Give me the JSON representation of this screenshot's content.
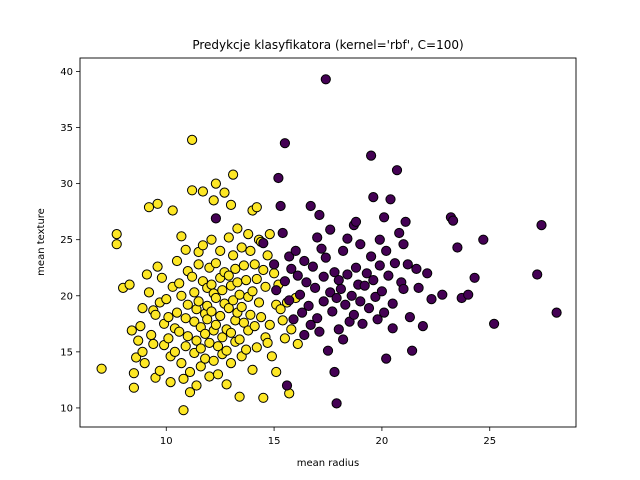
{
  "chart_data": {
    "type": "scatter",
    "title": "Predykcje klasyfikatora (kernel='rbf', C=100)",
    "xlabel": "mean radius",
    "ylabel": "mean texture",
    "xlim": [
      6.0,
      29.0
    ],
    "ylim": [
      8.3,
      41.2
    ],
    "xticks": [
      10,
      15,
      20,
      25
    ],
    "yticks": [
      10,
      15,
      20,
      25,
      30,
      35,
      40
    ],
    "grid": false,
    "legend": "none",
    "series": [
      {
        "color": "#fde725",
        "points": [
          [
            7.0,
            13.5
          ],
          [
            7.7,
            25.5
          ],
          [
            7.7,
            24.6
          ],
          [
            8.0,
            20.7
          ],
          [
            8.3,
            21.0
          ],
          [
            8.4,
            16.9
          ],
          [
            8.5,
            13.1
          ],
          [
            8.5,
            11.8
          ],
          [
            8.6,
            14.5
          ],
          [
            8.7,
            16.0
          ],
          [
            8.8,
            17.3
          ],
          [
            8.9,
            18.9
          ],
          [
            8.9,
            15.0
          ],
          [
            9.0,
            14.0
          ],
          [
            9.1,
            21.9
          ],
          [
            9.2,
            27.9
          ],
          [
            9.2,
            20.3
          ],
          [
            9.3,
            16.5
          ],
          [
            9.4,
            18.7
          ],
          [
            9.4,
            15.7
          ],
          [
            9.5,
            18.3
          ],
          [
            9.5,
            12.7
          ],
          [
            9.6,
            28.2
          ],
          [
            9.6,
            22.6
          ],
          [
            9.7,
            19.4
          ],
          [
            9.7,
            13.3
          ],
          [
            9.8,
            21.6
          ],
          [
            9.9,
            17.5
          ],
          [
            9.9,
            15.6
          ],
          [
            10.0,
            19.7
          ],
          [
            10.1,
            18.1
          ],
          [
            10.1,
            16.2
          ],
          [
            10.2,
            14.6
          ],
          [
            10.2,
            12.3
          ],
          [
            10.3,
            27.6
          ],
          [
            10.3,
            20.8
          ],
          [
            10.4,
            17.1
          ],
          [
            10.4,
            15.0
          ],
          [
            10.5,
            23.1
          ],
          [
            10.5,
            18.5
          ],
          [
            10.6,
            21.1
          ],
          [
            10.6,
            16.8
          ],
          [
            10.7,
            25.3
          ],
          [
            10.7,
            20.0
          ],
          [
            10.7,
            14.0
          ],
          [
            10.8,
            12.6
          ],
          [
            10.8,
            9.8
          ],
          [
            10.9,
            24.1
          ],
          [
            10.9,
            18.0
          ],
          [
            10.9,
            15.5
          ],
          [
            11.0,
            22.2
          ],
          [
            11.0,
            19.2
          ],
          [
            11.0,
            16.4
          ],
          [
            11.1,
            13.2
          ],
          [
            11.1,
            11.4
          ],
          [
            11.2,
            33.9
          ],
          [
            11.2,
            29.4
          ],
          [
            11.2,
            21.7
          ],
          [
            11.3,
            20.3
          ],
          [
            11.3,
            17.7
          ],
          [
            11.3,
            14.9
          ],
          [
            11.4,
            18.8
          ],
          [
            11.4,
            16.0
          ],
          [
            11.4,
            12.0
          ],
          [
            11.5,
            23.9
          ],
          [
            11.5,
            22.8
          ],
          [
            11.5,
            19.5
          ],
          [
            11.6,
            17.2
          ],
          [
            11.6,
            15.3
          ],
          [
            11.6,
            13.7
          ],
          [
            11.7,
            29.3
          ],
          [
            11.7,
            24.5
          ],
          [
            11.7,
            21.3
          ],
          [
            11.8,
            18.4
          ],
          [
            11.8,
            16.6
          ],
          [
            11.8,
            14.4
          ],
          [
            11.9,
            20.7
          ],
          [
            11.9,
            19.1
          ],
          [
            11.9,
            17.9
          ],
          [
            12.0,
            22.5
          ],
          [
            12.0,
            15.8
          ],
          [
            12.0,
            12.8
          ],
          [
            12.1,
            25.0
          ],
          [
            12.1,
            21.0
          ],
          [
            12.1,
            18.6
          ],
          [
            12.2,
            28.5
          ],
          [
            12.2,
            20.2
          ],
          [
            12.2,
            16.9
          ],
          [
            12.2,
            14.2
          ],
          [
            12.3,
            30.0
          ],
          [
            12.3,
            22.9
          ],
          [
            12.3,
            19.8
          ],
          [
            12.3,
            17.4
          ],
          [
            12.4,
            15.5
          ],
          [
            12.4,
            13.0
          ],
          [
            12.5,
            24.0
          ],
          [
            12.5,
            21.6
          ],
          [
            12.5,
            18.2
          ],
          [
            12.6,
            20.5
          ],
          [
            12.6,
            16.3
          ],
          [
            12.6,
            14.8
          ],
          [
            12.7,
            29.2
          ],
          [
            12.7,
            22.1
          ],
          [
            12.7,
            19.3
          ],
          [
            12.8,
            17.0
          ],
          [
            12.8,
            15.1
          ],
          [
            12.8,
            12.1
          ],
          [
            12.9,
            25.2
          ],
          [
            12.9,
            21.8
          ],
          [
            12.9,
            18.9
          ],
          [
            13.0,
            28.1
          ],
          [
            13.0,
            20.9
          ],
          [
            13.0,
            16.7
          ],
          [
            13.0,
            14.0
          ],
          [
            13.1,
            30.8
          ],
          [
            13.1,
            23.6
          ],
          [
            13.1,
            19.6
          ],
          [
            13.2,
            22.4
          ],
          [
            13.2,
            17.8
          ],
          [
            13.2,
            15.9
          ],
          [
            13.3,
            26.0
          ],
          [
            13.3,
            21.2
          ],
          [
            13.3,
            18.5
          ],
          [
            13.4,
            20.1
          ],
          [
            13.4,
            16.1
          ],
          [
            13.4,
            11.0
          ],
          [
            13.5,
            24.3
          ],
          [
            13.5,
            19.0
          ],
          [
            13.5,
            14.6
          ],
          [
            13.6,
            22.7
          ],
          [
            13.6,
            17.6
          ],
          [
            13.7,
            21.4
          ],
          [
            13.7,
            15.2
          ],
          [
            13.8,
            25.5
          ],
          [
            13.8,
            19.9
          ],
          [
            13.8,
            16.9
          ],
          [
            13.9,
            24.0
          ],
          [
            13.9,
            18.3
          ],
          [
            14.0,
            27.6
          ],
          [
            14.0,
            20.4
          ],
          [
            14.0,
            13.4
          ],
          [
            14.1,
            22.8
          ],
          [
            14.1,
            17.3
          ],
          [
            14.2,
            27.9
          ],
          [
            14.2,
            21.5
          ],
          [
            14.2,
            15.4
          ],
          [
            14.3,
            25.0
          ],
          [
            14.3,
            19.4
          ],
          [
            14.4,
            24.8
          ],
          [
            14.4,
            18.1
          ],
          [
            14.5,
            10.9
          ],
          [
            14.5,
            22.3
          ],
          [
            14.6,
            20.8
          ],
          [
            14.6,
            16.3
          ],
          [
            14.7,
            23.6
          ],
          [
            14.7,
            15.8
          ],
          [
            14.8,
            25.5
          ],
          [
            14.8,
            17.4
          ],
          [
            14.9,
            14.6
          ],
          [
            15.0,
            22.0
          ],
          [
            15.1,
            19.2
          ],
          [
            15.1,
            13.2
          ],
          [
            15.2,
            21.0
          ],
          [
            15.3,
            18.8
          ],
          [
            15.4,
            17.8
          ],
          [
            15.5,
            16.2
          ],
          [
            15.6,
            19.4
          ],
          [
            15.7,
            11.3
          ],
          [
            15.8,
            17.0
          ],
          [
            16.0,
            19.8
          ],
          [
            16.1,
            15.7
          ]
        ]
      },
      {
        "color": "#440154",
        "points": [
          [
            12.3,
            26.9
          ],
          [
            14.5,
            24.7
          ],
          [
            15.0,
            22.8
          ],
          [
            15.1,
            20.5
          ],
          [
            15.2,
            30.5
          ],
          [
            15.3,
            28.0
          ],
          [
            15.4,
            25.6
          ],
          [
            15.5,
            33.6
          ],
          [
            15.5,
            21.3
          ],
          [
            15.6,
            12.0
          ],
          [
            15.7,
            23.5
          ],
          [
            15.7,
            19.6
          ],
          [
            15.8,
            22.4
          ],
          [
            15.9,
            17.9
          ],
          [
            16.0,
            24.0
          ],
          [
            16.1,
            21.8
          ],
          [
            16.2,
            20.1
          ],
          [
            16.3,
            18.5
          ],
          [
            16.4,
            23.1
          ],
          [
            16.4,
            16.5
          ],
          [
            16.5,
            21.2
          ],
          [
            16.6,
            19.1
          ],
          [
            16.7,
            28.0
          ],
          [
            16.7,
            17.4
          ],
          [
            16.8,
            22.6
          ],
          [
            16.9,
            20.7
          ],
          [
            17.0,
            25.2
          ],
          [
            17.0,
            18.0
          ],
          [
            17.1,
            27.2
          ],
          [
            17.1,
            16.8
          ],
          [
            17.2,
            24.2
          ],
          [
            17.3,
            21.7
          ],
          [
            17.3,
            19.5
          ],
          [
            17.4,
            39.3
          ],
          [
            17.4,
            23.4
          ],
          [
            17.5,
            15.1
          ],
          [
            17.6,
            25.9
          ],
          [
            17.6,
            20.3
          ],
          [
            17.7,
            18.6
          ],
          [
            17.8,
            13.2
          ],
          [
            17.8,
            22.1
          ],
          [
            17.9,
            10.4
          ],
          [
            17.9,
            19.8
          ],
          [
            18.0,
            21.4
          ],
          [
            18.0,
            17.0
          ],
          [
            18.1,
            20.6
          ],
          [
            18.2,
            24.0
          ],
          [
            18.2,
            16.1
          ],
          [
            18.3,
            19.2
          ],
          [
            18.4,
            25.1
          ],
          [
            18.4,
            21.9
          ],
          [
            18.5,
            17.7
          ],
          [
            18.6,
            20.0
          ],
          [
            18.7,
            26.3
          ],
          [
            18.7,
            18.3
          ],
          [
            18.8,
            26.6
          ],
          [
            18.8,
            22.5
          ],
          [
            18.9,
            21.0
          ],
          [
            19.0,
            19.5
          ],
          [
            19.0,
            24.6
          ],
          [
            19.1,
            17.5
          ],
          [
            19.2,
            20.9
          ],
          [
            19.3,
            22.0
          ],
          [
            19.4,
            18.9
          ],
          [
            19.5,
            32.5
          ],
          [
            19.5,
            23.5
          ],
          [
            19.6,
            28.8
          ],
          [
            19.6,
            21.4
          ],
          [
            19.7,
            19.9
          ],
          [
            19.8,
            17.9
          ],
          [
            19.9,
            25.0
          ],
          [
            19.9,
            22.7
          ],
          [
            20.0,
            20.4
          ],
          [
            20.1,
            27.0
          ],
          [
            20.1,
            18.5
          ],
          [
            20.2,
            24.0
          ],
          [
            20.2,
            14.4
          ],
          [
            20.3,
            21.8
          ],
          [
            20.4,
            28.6
          ],
          [
            20.5,
            19.3
          ],
          [
            20.5,
            17.1
          ],
          [
            20.6,
            22.9
          ],
          [
            20.7,
            31.2
          ],
          [
            20.8,
            25.6
          ],
          [
            20.9,
            21.2
          ],
          [
            21.0,
            24.6
          ],
          [
            21.0,
            20.6
          ],
          [
            21.1,
            26.6
          ],
          [
            21.2,
            22.8
          ],
          [
            21.3,
            18.1
          ],
          [
            21.4,
            15.1
          ],
          [
            21.6,
            22.4
          ],
          [
            21.7,
            20.7
          ],
          [
            21.9,
            17.3
          ],
          [
            22.1,
            22.0
          ],
          [
            22.3,
            19.7
          ],
          [
            22.8,
            20.1
          ],
          [
            23.2,
            27.0
          ],
          [
            23.3,
            26.7
          ],
          [
            23.5,
            24.3
          ],
          [
            23.7,
            19.8
          ],
          [
            24.0,
            20.1
          ],
          [
            24.3,
            21.6
          ],
          [
            24.7,
            25.0
          ],
          [
            25.2,
            17.5
          ],
          [
            27.2,
            21.9
          ],
          [
            27.4,
            26.3
          ],
          [
            28.1,
            18.5
          ]
        ]
      }
    ]
  }
}
